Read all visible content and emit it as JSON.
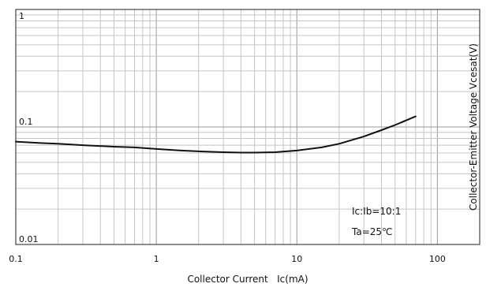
{
  "chart_data": {
    "type": "line",
    "title": "",
    "xlabel": "Collector Current   Ic(mA)",
    "ylabel": "Collector-Emitter Voltage   Vcesat(V)",
    "x_scale": "log",
    "y_scale": "log",
    "xlim": [
      0.1,
      200
    ],
    "ylim": [
      0.01,
      1
    ],
    "grid": true,
    "x_ticks": [
      "0.1",
      "1",
      "10",
      "100"
    ],
    "x_tick_values": [
      0.1,
      1,
      10,
      100
    ],
    "y_ticks": [
      "0.01",
      "0.1",
      "1"
    ],
    "y_tick_values": [
      0.01,
      0.1,
      1
    ],
    "annotations": [
      "Ic:Ib=10:1",
      "Ta=25℃"
    ],
    "series": [
      {
        "x": [
          0.1,
          0.15,
          0.2,
          0.3,
          0.5,
          0.7,
          1.0,
          1.5,
          2.0,
          3.0,
          4.0,
          5.0,
          7.0,
          10,
          15,
          20,
          30,
          40,
          50,
          70
        ],
        "y": [
          0.075,
          0.073,
          0.072,
          0.07,
          0.068,
          0.067,
          0.065,
          0.063,
          0.062,
          0.061,
          0.0605,
          0.0605,
          0.061,
          0.063,
          0.067,
          0.072,
          0.083,
          0.094,
          0.104,
          0.123
        ]
      }
    ]
  }
}
